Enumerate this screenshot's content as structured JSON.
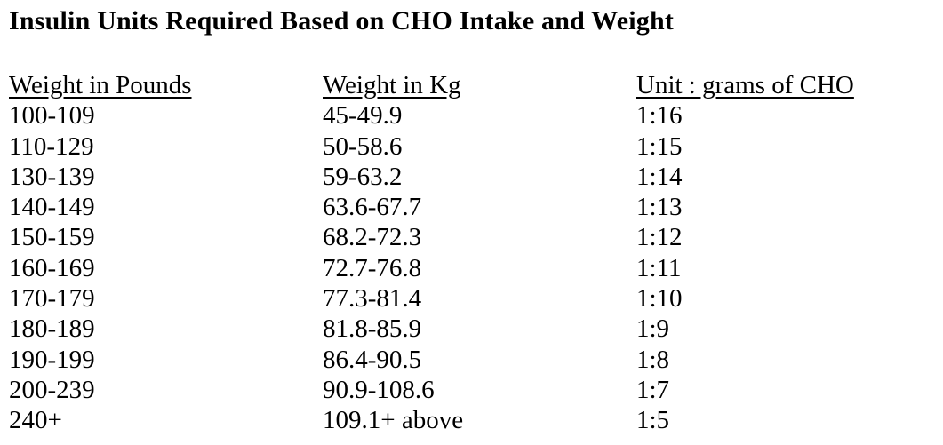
{
  "document": {
    "title": "Insulin Units Required Based on CHO Intake and Weight",
    "table": {
      "headers": [
        "Weight in Pounds",
        "Weight in Kg",
        "Unit : grams of CHO"
      ],
      "rows": [
        [
          "100-109",
          "45-49.9",
          "1:16"
        ],
        [
          "110-129",
          "50-58.6",
          "1:15"
        ],
        [
          "130-139",
          "59-63.2",
          "1:14"
        ],
        [
          "140-149",
          "63.6-67.7",
          "1:13"
        ],
        [
          "150-159",
          "68.2-72.3",
          "1:12"
        ],
        [
          "160-169",
          "72.7-76.8",
          "1:11"
        ],
        [
          "170-179",
          "77.3-81.4",
          "1:10"
        ],
        [
          "180-189",
          "81.8-85.9",
          "1:9"
        ],
        [
          "190-199",
          "86.4-90.5",
          "1:8"
        ],
        [
          "200-239",
          "90.9-108.6",
          "1:7"
        ],
        [
          "240+",
          "109.1+ above",
          "1:5"
        ]
      ]
    }
  }
}
